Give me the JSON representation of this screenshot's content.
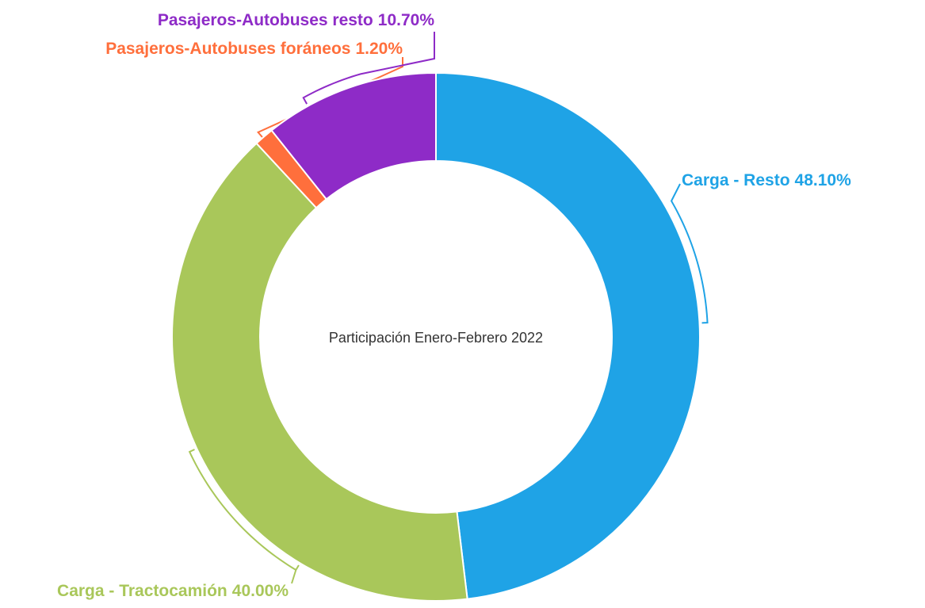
{
  "chart_data": {
    "type": "pie",
    "title": "Participación Enero-Febrero 2022",
    "categories": [
      "Carga - Resto",
      "Carga - Tractocamión",
      "Pasajeros-Autobuses foráneos",
      "Pasajeros-Autobuses resto"
    ],
    "values": [
      48.1,
      40.0,
      1.2,
      10.7
    ],
    "value_labels": [
      "48.10%",
      "40.00%",
      "1.20%",
      "10.70%"
    ],
    "colors": [
      "#1fa3e6",
      "#a9c75a",
      "#ff6f3c",
      "#8e2bc7"
    ]
  }
}
